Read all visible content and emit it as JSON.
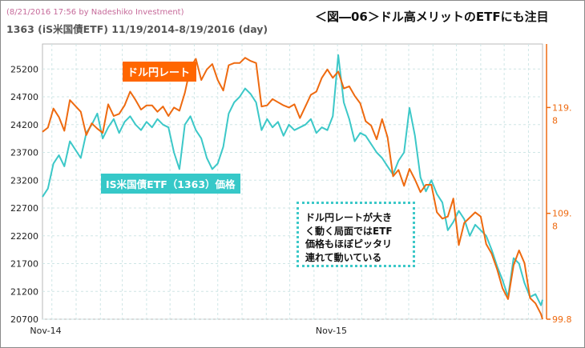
{
  "header": {
    "meta": "(8/21/2016 17:56 by Nadeshiko Investment)",
    "series_title": "1363 (iS米国債ETF)  11/19/2014-8/19/2016 (day)",
    "banner": "＜図―06＞ドル高メリットのETFにも注目"
  },
  "labels": {
    "usd": "ドル円レート",
    "etf": "IS米国債ETF（1363）価格"
  },
  "annotation": "ドル円レートが大き\nく動く局面ではETF\n価格もほぼピッタリ\n連れて動いている",
  "colors": {
    "etf": "#3cc8c8",
    "usd": "#ee6a10",
    "grid": "#cfe6e6",
    "axis_right": "#ee6a10"
  },
  "chart_data": {
    "type": "line",
    "x": [
      "Nov-14",
      "Nov-15"
    ],
    "x_range": [
      "2014-11-19",
      "2016-08-19"
    ],
    "grid": true,
    "left_axis": {
      "ticks": [
        20700,
        21200,
        21700,
        22200,
        22700,
        23200,
        23700,
        24200,
        24700,
        25200
      ],
      "range": [
        20700,
        25650
      ]
    },
    "right_axis": {
      "tick_labels": [
        "119.\n8",
        "109.\n8",
        "99.8"
      ],
      "ticks": [
        119.8,
        109.8,
        99.8
      ],
      "range": [
        99.8,
        125.8
      ]
    },
    "series": [
      {
        "name": "IS米国債ETF（1363）価格",
        "axis": "left",
        "points": [
          [
            "2014-11-19",
            22900
          ],
          [
            "2014-11-26",
            23050
          ],
          [
            "2014-12-03",
            23500
          ],
          [
            "2014-12-10",
            23650
          ],
          [
            "2014-12-17",
            23450
          ],
          [
            "2014-12-24",
            23900
          ],
          [
            "2015-01-07",
            23600
          ],
          [
            "2015-01-14",
            24050
          ],
          [
            "2015-01-21",
            24200
          ],
          [
            "2015-01-28",
            24400
          ],
          [
            "2015-02-04",
            23950
          ],
          [
            "2015-02-11",
            24150
          ],
          [
            "2015-02-18",
            24300
          ],
          [
            "2015-02-25",
            24050
          ],
          [
            "2015-03-04",
            24250
          ],
          [
            "2015-03-11",
            24350
          ],
          [
            "2015-03-18",
            24200
          ],
          [
            "2015-03-25",
            24100
          ],
          [
            "2015-04-01",
            24250
          ],
          [
            "2015-04-08",
            24150
          ],
          [
            "2015-04-15",
            24300
          ],
          [
            "2015-04-22",
            24200
          ],
          [
            "2015-04-29",
            24150
          ],
          [
            "2015-05-06",
            23700
          ],
          [
            "2015-05-13",
            23400
          ],
          [
            "2015-05-20",
            24200
          ],
          [
            "2015-05-27",
            24350
          ],
          [
            "2015-06-03",
            24100
          ],
          [
            "2015-06-10",
            23950
          ],
          [
            "2015-06-17",
            23600
          ],
          [
            "2015-06-24",
            23400
          ],
          [
            "2015-07-01",
            23500
          ],
          [
            "2015-07-08",
            23800
          ],
          [
            "2015-07-15",
            24400
          ],
          [
            "2015-07-22",
            24600
          ],
          [
            "2015-07-29",
            24700
          ],
          [
            "2015-08-05",
            24850
          ],
          [
            "2015-08-12",
            24750
          ],
          [
            "2015-08-19",
            24600
          ],
          [
            "2015-08-26",
            24100
          ],
          [
            "2015-09-02",
            24300
          ],
          [
            "2015-09-09",
            24150
          ],
          [
            "2015-09-16",
            24250
          ],
          [
            "2015-09-23",
            24000
          ],
          [
            "2015-09-30",
            24200
          ],
          [
            "2015-10-07",
            24100
          ],
          [
            "2015-10-14",
            24150
          ],
          [
            "2015-10-21",
            24200
          ],
          [
            "2015-10-28",
            24300
          ],
          [
            "2015-11-04",
            24050
          ],
          [
            "2015-11-11",
            24150
          ],
          [
            "2015-11-18",
            24100
          ],
          [
            "2015-11-25",
            24350
          ],
          [
            "2015-12-02",
            25450
          ],
          [
            "2015-12-09",
            24600
          ],
          [
            "2015-12-16",
            24300
          ],
          [
            "2015-12-23",
            23900
          ],
          [
            "2015-12-30",
            24050
          ],
          [
            "2016-01-06",
            24000
          ],
          [
            "2016-01-13",
            23850
          ],
          [
            "2016-01-20",
            23700
          ],
          [
            "2016-01-27",
            23600
          ],
          [
            "2016-02-03",
            23450
          ],
          [
            "2016-02-10",
            23300
          ],
          [
            "2016-02-17",
            23550
          ],
          [
            "2016-02-24",
            23700
          ],
          [
            "2016-03-02",
            24500
          ],
          [
            "2016-03-09",
            24000
          ],
          [
            "2016-03-16",
            23250
          ],
          [
            "2016-03-23",
            23000
          ],
          [
            "2016-03-30",
            23200
          ],
          [
            "2016-04-06",
            22950
          ],
          [
            "2016-04-13",
            22800
          ],
          [
            "2016-04-20",
            22300
          ],
          [
            "2016-04-27",
            22450
          ],
          [
            "2016-05-04",
            22650
          ],
          [
            "2016-05-11",
            22500
          ],
          [
            "2016-05-18",
            22200
          ],
          [
            "2016-05-25",
            22400
          ],
          [
            "2016-06-01",
            22300
          ],
          [
            "2016-06-08",
            22200
          ],
          [
            "2016-06-15",
            21950
          ],
          [
            "2016-06-22",
            21650
          ],
          [
            "2016-06-29",
            21400
          ],
          [
            "2016-07-06",
            21100
          ],
          [
            "2016-07-13",
            21800
          ],
          [
            "2016-07-20",
            21700
          ],
          [
            "2016-07-27",
            21350
          ],
          [
            "2016-08-03",
            21100
          ],
          [
            "2016-08-10",
            21150
          ],
          [
            "2016-08-17",
            20950
          ],
          [
            "2016-08-19",
            21050
          ]
        ]
      },
      {
        "name": "ドル円レート",
        "axis": "right",
        "points": [
          [
            "2014-11-19",
            117.5
          ],
          [
            "2014-11-26",
            117.9
          ],
          [
            "2014-12-03",
            119.7
          ],
          [
            "2014-12-10",
            118.9
          ],
          [
            "2014-12-17",
            117.6
          ],
          [
            "2014-12-24",
            120.5
          ],
          [
            "2015-01-07",
            119.4
          ],
          [
            "2015-01-14",
            117.2
          ],
          [
            "2015-01-21",
            118.3
          ],
          [
            "2015-01-28",
            117.8
          ],
          [
            "2015-02-04",
            117.4
          ],
          [
            "2015-02-11",
            120.1
          ],
          [
            "2015-02-18",
            119.0
          ],
          [
            "2015-02-25",
            119.2
          ],
          [
            "2015-03-04",
            120.0
          ],
          [
            "2015-03-11",
            121.3
          ],
          [
            "2015-03-18",
            120.5
          ],
          [
            "2015-03-25",
            119.6
          ],
          [
            "2015-04-01",
            120.0
          ],
          [
            "2015-04-08",
            120.0
          ],
          [
            "2015-04-15",
            119.4
          ],
          [
            "2015-04-22",
            119.9
          ],
          [
            "2015-04-29",
            119.0
          ],
          [
            "2015-05-06",
            119.8
          ],
          [
            "2015-05-13",
            119.5
          ],
          [
            "2015-05-20",
            121.2
          ],
          [
            "2015-05-27",
            123.6
          ],
          [
            "2015-06-03",
            124.4
          ],
          [
            "2015-06-10",
            122.4
          ],
          [
            "2015-06-17",
            123.4
          ],
          [
            "2015-06-24",
            123.9
          ],
          [
            "2015-07-01",
            122.4
          ],
          [
            "2015-07-08",
            121.4
          ],
          [
            "2015-07-15",
            123.8
          ],
          [
            "2015-07-22",
            124.0
          ],
          [
            "2015-07-29",
            124.0
          ],
          [
            "2015-08-05",
            124.5
          ],
          [
            "2015-08-12",
            124.2
          ],
          [
            "2015-08-19",
            124.0
          ],
          [
            "2015-08-26",
            119.9
          ],
          [
            "2015-09-02",
            120.0
          ],
          [
            "2015-09-09",
            120.6
          ],
          [
            "2015-09-16",
            120.3
          ],
          [
            "2015-09-23",
            120.0
          ],
          [
            "2015-09-30",
            119.8
          ],
          [
            "2015-10-07",
            120.1
          ],
          [
            "2015-10-14",
            118.8
          ],
          [
            "2015-10-21",
            119.9
          ],
          [
            "2015-10-28",
            121.0
          ],
          [
            "2015-11-04",
            121.3
          ],
          [
            "2015-11-11",
            122.6
          ],
          [
            "2015-11-18",
            123.4
          ],
          [
            "2015-11-25",
            122.6
          ],
          [
            "2015-12-02",
            123.2
          ],
          [
            "2015-12-09",
            121.6
          ],
          [
            "2015-12-16",
            121.8
          ],
          [
            "2015-12-23",
            120.9
          ],
          [
            "2015-12-30",
            120.2
          ],
          [
            "2016-01-06",
            118.5
          ],
          [
            "2016-01-13",
            118.1
          ],
          [
            "2016-01-20",
            116.8
          ],
          [
            "2016-01-27",
            118.7
          ],
          [
            "2016-02-03",
            117.0
          ],
          [
            "2016-02-10",
            113.3
          ],
          [
            "2016-02-17",
            113.9
          ],
          [
            "2016-02-24",
            112.4
          ],
          [
            "2016-03-02",
            114.0
          ],
          [
            "2016-03-09",
            113.0
          ],
          [
            "2016-03-16",
            111.8
          ],
          [
            "2016-03-23",
            112.5
          ],
          [
            "2016-03-30",
            112.5
          ],
          [
            "2016-04-06",
            109.9
          ],
          [
            "2016-04-13",
            109.3
          ],
          [
            "2016-04-20",
            109.5
          ],
          [
            "2016-04-27",
            111.2
          ],
          [
            "2016-05-04",
            106.8
          ],
          [
            "2016-05-11",
            108.9
          ],
          [
            "2016-05-18",
            109.4
          ],
          [
            "2016-05-25",
            109.9
          ],
          [
            "2016-06-01",
            109.5
          ],
          [
            "2016-06-08",
            106.9
          ],
          [
            "2016-06-15",
            106.0
          ],
          [
            "2016-06-22",
            104.5
          ],
          [
            "2016-06-29",
            102.7
          ],
          [
            "2016-07-06",
            101.7
          ],
          [
            "2016-07-13",
            104.9
          ],
          [
            "2016-07-20",
            106.3
          ],
          [
            "2016-07-27",
            105.1
          ],
          [
            "2016-08-03",
            101.8
          ],
          [
            "2016-08-10",
            101.3
          ],
          [
            "2016-08-17",
            100.3
          ],
          [
            "2016-08-19",
            99.8
          ]
        ]
      }
    ]
  }
}
